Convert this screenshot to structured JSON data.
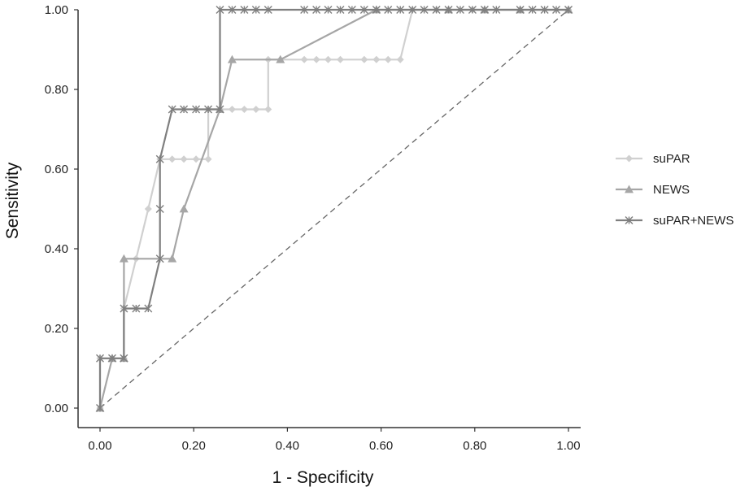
{
  "chart_data": {
    "type": "line",
    "xlabel": "1 - Specificity",
    "ylabel": "Sensitivity",
    "xlim": [
      0,
      1
    ],
    "ylim": [
      0,
      1
    ],
    "x_ticks": [
      "0.00",
      "0.20",
      "0.40",
      "0.60",
      "0.80",
      "1.00"
    ],
    "y_ticks": [
      "0.00",
      "0.20",
      "0.40",
      "0.60",
      "0.80",
      "1.00"
    ],
    "grid": false,
    "legend_position": "right",
    "reference_line": {
      "x": [
        0,
        1
      ],
      "y": [
        0,
        1
      ],
      "style": "dashed",
      "color": "#666666"
    },
    "series": [
      {
        "name": "suPAR",
        "marker": "diamond",
        "color": "#d0d0d0",
        "points": [
          [
            0,
            0
          ],
          [
            0,
            0.125
          ],
          [
            0.026,
            0.125
          ],
          [
            0.051,
            0.125
          ],
          [
            0.051,
            0.25
          ],
          [
            0.077,
            0.375
          ],
          [
            0.103,
            0.5
          ],
          [
            0.128,
            0.625
          ],
          [
            0.154,
            0.625
          ],
          [
            0.179,
            0.625
          ],
          [
            0.205,
            0.625
          ],
          [
            0.231,
            0.625
          ],
          [
            0.231,
            0.75
          ],
          [
            0.256,
            0.75
          ],
          [
            0.282,
            0.75
          ],
          [
            0.308,
            0.75
          ],
          [
            0.333,
            0.75
          ],
          [
            0.359,
            0.75
          ],
          [
            0.359,
            0.875
          ],
          [
            0.385,
            0.875
          ],
          [
            0.436,
            0.875
          ],
          [
            0.462,
            0.875
          ],
          [
            0.487,
            0.875
          ],
          [
            0.513,
            0.875
          ],
          [
            0.564,
            0.875
          ],
          [
            0.59,
            0.875
          ],
          [
            0.615,
            0.875
          ],
          [
            0.641,
            0.875
          ],
          [
            0.667,
            1.0
          ],
          [
            0.718,
            1.0
          ],
          [
            0.744,
            1.0
          ],
          [
            0.795,
            1.0
          ],
          [
            0.821,
            1.0
          ],
          [
            0.897,
            1.0
          ],
          [
            1.0,
            1.0
          ]
        ]
      },
      {
        "name": "NEWS",
        "marker": "triangle",
        "color": "#a6a6a6",
        "points": [
          [
            0,
            0
          ],
          [
            0.026,
            0.125
          ],
          [
            0.051,
            0.125
          ],
          [
            0.051,
            0.375
          ],
          [
            0.154,
            0.375
          ],
          [
            0.179,
            0.5
          ],
          [
            0.256,
            0.75
          ],
          [
            0.282,
            0.875
          ],
          [
            0.385,
            0.875
          ],
          [
            0.59,
            1.0
          ],
          [
            0.744,
            1.0
          ],
          [
            0.821,
            1.0
          ],
          [
            0.897,
            1.0
          ],
          [
            1.0,
            1.0
          ]
        ]
      },
      {
        "name": "suPAR+NEWS",
        "marker": "asterisk",
        "color": "#7f7f7f",
        "points": [
          [
            0,
            0
          ],
          [
            0,
            0.125
          ],
          [
            0.026,
            0.125
          ],
          [
            0.051,
            0.125
          ],
          [
            0.051,
            0.25
          ],
          [
            0.077,
            0.25
          ],
          [
            0.103,
            0.25
          ],
          [
            0.128,
            0.375
          ],
          [
            0.128,
            0.5
          ],
          [
            0.128,
            0.625
          ],
          [
            0.154,
            0.75
          ],
          [
            0.179,
            0.75
          ],
          [
            0.205,
            0.75
          ],
          [
            0.231,
            0.75
          ],
          [
            0.256,
            0.75
          ],
          [
            0.256,
            1.0
          ],
          [
            0.282,
            1.0
          ],
          [
            0.308,
            1.0
          ],
          [
            0.333,
            1.0
          ],
          [
            0.359,
            1.0
          ],
          [
            0.436,
            1.0
          ],
          [
            0.462,
            1.0
          ],
          [
            0.487,
            1.0
          ],
          [
            0.513,
            1.0
          ],
          [
            0.538,
            1.0
          ],
          [
            0.564,
            1.0
          ],
          [
            0.59,
            1.0
          ],
          [
            0.615,
            1.0
          ],
          [
            0.641,
            1.0
          ],
          [
            0.667,
            1.0
          ],
          [
            0.692,
            1.0
          ],
          [
            0.718,
            1.0
          ],
          [
            0.744,
            1.0
          ],
          [
            0.769,
            1.0
          ],
          [
            0.795,
            1.0
          ],
          [
            0.821,
            1.0
          ],
          [
            0.846,
            1.0
          ],
          [
            0.897,
            1.0
          ],
          [
            0.923,
            1.0
          ],
          [
            0.949,
            1.0
          ],
          [
            0.974,
            1.0
          ],
          [
            1.0,
            1.0
          ]
        ]
      }
    ]
  }
}
